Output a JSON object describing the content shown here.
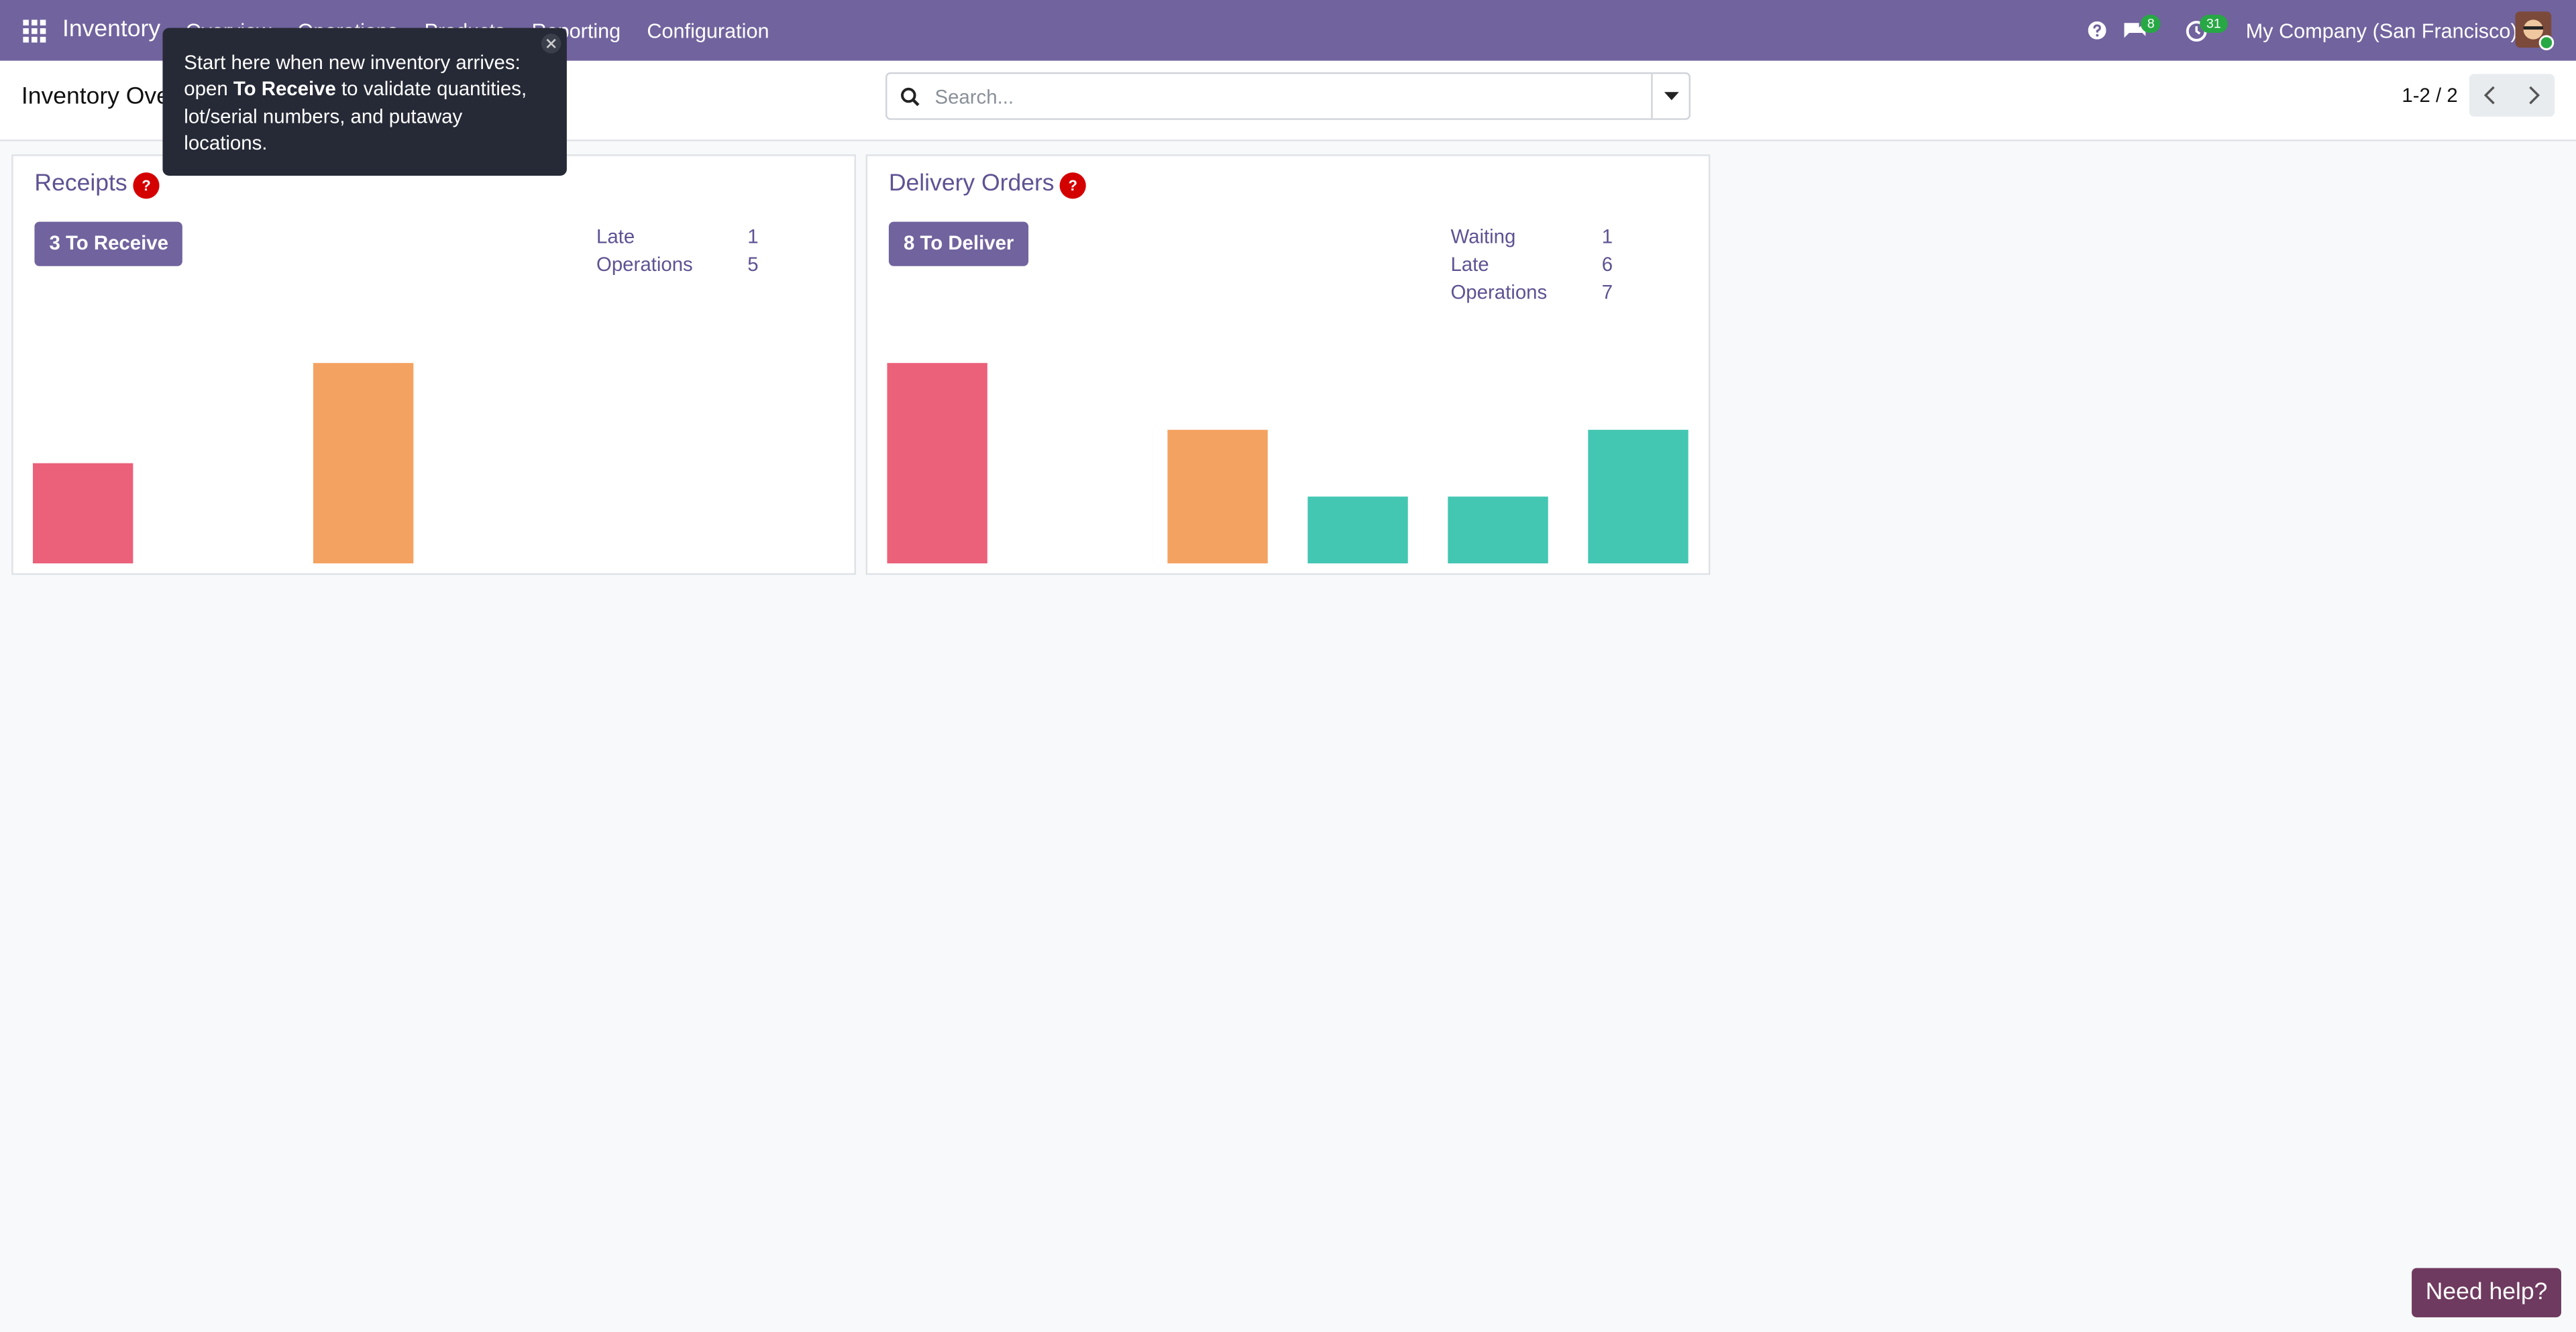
{
  "navbar": {
    "app": "Inventory",
    "menu": [
      "Overview",
      "Operations",
      "Products",
      "Reporting",
      "Configuration"
    ],
    "messages_badge": 8,
    "activities_badge": 31,
    "company": "My Company (San Francisco)"
  },
  "control_panel": {
    "breadcrumb": "Inventory Overview",
    "search_placeholder": "Search...",
    "pager": "1-2 / 2"
  },
  "tooltip": {
    "parts": [
      "Start here when new inventory arrives: open ",
      "To Receive",
      " to validate quantities, lot/serial numbers, and putaway locations."
    ]
  },
  "cards": [
    {
      "title": "Receipts",
      "help": "?",
      "button": "3 To Receive",
      "stats": [
        {
          "label": "Late",
          "value": 1
        },
        {
          "label": "Operations",
          "value": 5
        }
      ],
      "chart_data": {
        "type": "bar",
        "categories": [
          null,
          null,
          null,
          null,
          null,
          null
        ],
        "values": [
          1,
          0,
          2,
          0,
          0,
          0
        ],
        "colors": [
          "#eb6179",
          "#eb6179",
          "#f4a261",
          "#43c6b2",
          "#43c6b2",
          "#43c6b2"
        ],
        "ylim": [
          0,
          2
        ]
      }
    },
    {
      "title": "Delivery Orders",
      "help": "?",
      "button": "8 To Deliver",
      "stats": [
        {
          "label": "Waiting",
          "value": 1
        },
        {
          "label": "Late",
          "value": 6
        },
        {
          "label": "Operations",
          "value": 7
        }
      ],
      "chart_data": {
        "type": "bar",
        "categories": [
          null,
          null,
          null,
          null,
          null,
          null
        ],
        "values": [
          3,
          0,
          2,
          1,
          1,
          2
        ],
        "colors": [
          "#eb6179",
          "#eb6179",
          "#f4a261",
          "#43c6b2",
          "#43c6b2",
          "#43c6b2"
        ],
        "ylim": [
          0,
          3
        ]
      }
    }
  ],
  "help_button": "Need help?"
}
